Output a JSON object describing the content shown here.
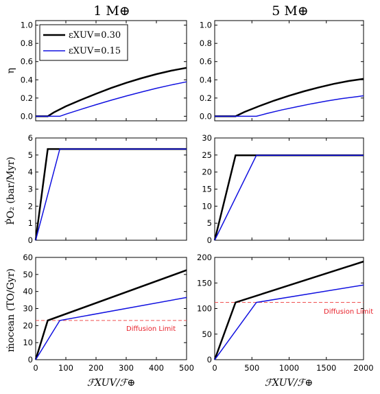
{
  "colors": {
    "black_series": "#000000",
    "blue_series": "#1010e0",
    "diffusion": "#f05050"
  },
  "column_titles": [
    "1 M⊕",
    "5 M⊕"
  ],
  "row_ylabels": [
    "η",
    "ṖO₂ (bar/Myr)",
    "ṁocean (TO/Gyr)"
  ],
  "x_label": "ℱXUV/ℱ⊕",
  "legend": [
    "εXUV=0.30",
    "εXUV=0.15"
  ],
  "diffusion_label": "Diffusion Limit",
  "chart_data": [
    {
      "type": "line",
      "panel": "row1-col1",
      "xlim": [
        0,
        500
      ],
      "ylim": [
        -0.05,
        1.05
      ],
      "yticks": [
        "0.0",
        "0.2",
        "0.4",
        "0.6",
        "0.8",
        "1.0"
      ],
      "xticks": [],
      "series": [
        {
          "name": "εXUV=0.30",
          "x": [
            0,
            40,
            60,
            100,
            150,
            200,
            250,
            300,
            350,
            400,
            450,
            500
          ],
          "y": [
            0,
            0,
            0.042,
            0.109,
            0.18,
            0.247,
            0.31,
            0.367,
            0.417,
            0.462,
            0.501,
            0.532
          ]
        },
        {
          "name": "εXUV=0.15",
          "x": [
            0,
            80,
            100,
            150,
            200,
            250,
            300,
            350,
            400,
            450,
            500
          ],
          "y": [
            0,
            0,
            0.023,
            0.076,
            0.127,
            0.176,
            0.222,
            0.266,
            0.307,
            0.344,
            0.378
          ]
        }
      ]
    },
    {
      "type": "line",
      "panel": "row1-col2",
      "xlim": [
        0,
        2000
      ],
      "ylim": [
        -0.05,
        1.05
      ],
      "yticks": [
        "0.0",
        "0.2",
        "0.4",
        "0.6",
        "0.8",
        "1.0"
      ],
      "xticks": [],
      "series": [
        {
          "x": [
            0,
            280,
            400,
            600,
            800,
            1000,
            1200,
            1400,
            1600,
            1800,
            2000
          ],
          "y": [
            0,
            0,
            0.047,
            0.112,
            0.172,
            0.226,
            0.274,
            0.317,
            0.355,
            0.387,
            0.41
          ]
        },
        {
          "x": [
            0,
            560,
            700,
            900,
            1100,
            1300,
            1500,
            1700,
            1900,
            2000
          ],
          "y": [
            0,
            0,
            0.03,
            0.069,
            0.104,
            0.137,
            0.166,
            0.193,
            0.214,
            0.225
          ]
        }
      ]
    },
    {
      "type": "line",
      "panel": "row2-col1",
      "xlim": [
        0,
        500
      ],
      "ylim": [
        0,
        6
      ],
      "yticks": [
        "0",
        "1",
        "2",
        "3",
        "4",
        "5",
        "6"
      ],
      "xticks": [],
      "series": [
        {
          "x": [
            0,
            40,
            500
          ],
          "y": [
            0,
            5.35,
            5.35
          ]
        },
        {
          "x": [
            0,
            80,
            500
          ],
          "y": [
            0,
            5.35,
            5.35
          ]
        }
      ]
    },
    {
      "type": "line",
      "panel": "row2-col2",
      "xlim": [
        0,
        2000
      ],
      "ylim": [
        0,
        30
      ],
      "yticks": [
        "0",
        "5",
        "10",
        "15",
        "20",
        "25",
        "30"
      ],
      "xticks": [],
      "series": [
        {
          "x": [
            0,
            280,
            2000
          ],
          "y": [
            0,
            24.9,
            24.9
          ]
        },
        {
          "x": [
            0,
            560,
            2000
          ],
          "y": [
            0,
            24.9,
            24.9
          ]
        }
      ]
    },
    {
      "type": "line",
      "panel": "row3-col1",
      "xlim": [
        0,
        500
      ],
      "ylim": [
        0,
        60
      ],
      "yticks": [
        "0",
        "10",
        "20",
        "30",
        "40",
        "50",
        "60"
      ],
      "xticks": [
        "0",
        "100",
        "200",
        "300",
        "400",
        "500"
      ],
      "hline": 23,
      "series": [
        {
          "x": [
            0,
            40,
            500
          ],
          "y": [
            0,
            23,
            52.5
          ]
        },
        {
          "x": [
            0,
            80,
            500
          ],
          "y": [
            0,
            23,
            36.5
          ]
        }
      ]
    },
    {
      "type": "line",
      "panel": "row3-col2",
      "xlim": [
        0,
        2000
      ],
      "ylim": [
        0,
        200
      ],
      "yticks": [
        "0",
        "50",
        "100",
        "150",
        "200"
      ],
      "xticks": [
        "0",
        "500",
        "1000",
        "1500",
        "2000"
      ],
      "hline": 112,
      "series": [
        {
          "x": [
            0,
            280,
            2000
          ],
          "y": [
            0,
            112,
            192
          ]
        },
        {
          "x": [
            0,
            560,
            2000
          ],
          "y": [
            0,
            112,
            146
          ]
        }
      ]
    }
  ]
}
